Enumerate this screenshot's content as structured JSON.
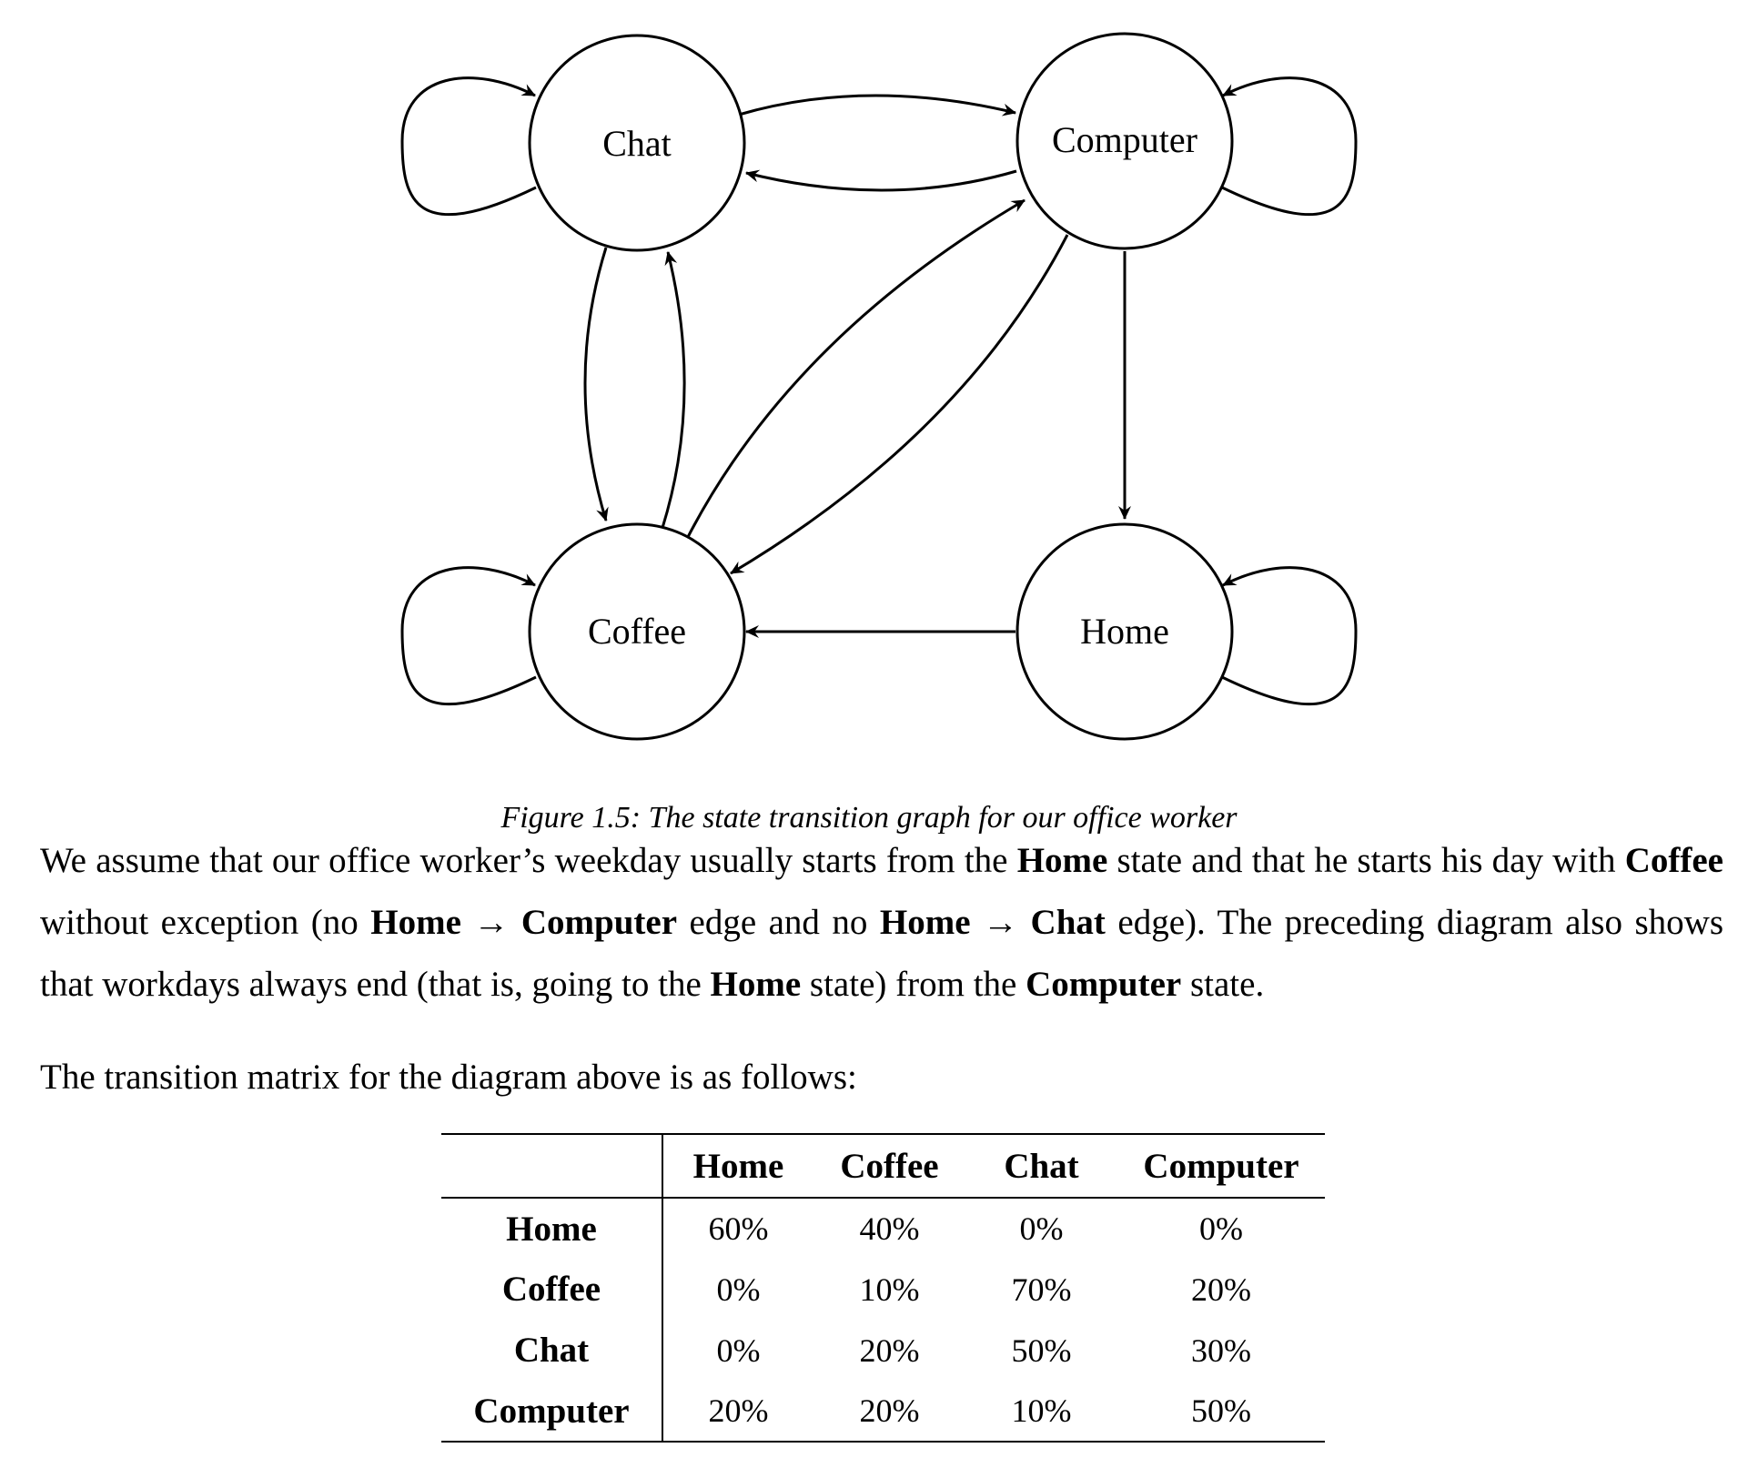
{
  "diagram": {
    "nodes": {
      "chat": "Chat",
      "computer": "Computer",
      "coffee": "Coffee",
      "home": "Home"
    }
  },
  "caption": "Figure 1.5: The state transition graph for our office worker",
  "paragraph1": {
    "t1": "We assume that our office worker’s weekday usually starts from the ",
    "b1": "Home",
    "t2": " state and that he starts his day with ",
    "b2": "Coffee",
    "t3": " without exception (no ",
    "b3": "Home",
    "t4": " → ",
    "b4": "Computer",
    "t5": " edge and no ",
    "b5": "Home",
    "t6": " → ",
    "b6": "Chat",
    "t7": " edge). The preceding diagram also shows that workdays always end (that is, going to the ",
    "b7": "Home",
    "t8": " state) from the ",
    "b8": "Computer",
    "t9": " state."
  },
  "paragraph2": "The transition matrix for the diagram above is as follows:",
  "matrix": {
    "columns": [
      "Home",
      "Coffee",
      "Chat",
      "Computer"
    ],
    "rows": [
      {
        "label": "Home",
        "values": [
          "60%",
          "40%",
          "0%",
          "0%"
        ]
      },
      {
        "label": "Coffee",
        "values": [
          "0%",
          "10%",
          "70%",
          "20%"
        ]
      },
      {
        "label": "Chat",
        "values": [
          "0%",
          "20%",
          "50%",
          "30%"
        ]
      },
      {
        "label": "Computer",
        "values": [
          "20%",
          "20%",
          "10%",
          "50%"
        ]
      }
    ]
  }
}
